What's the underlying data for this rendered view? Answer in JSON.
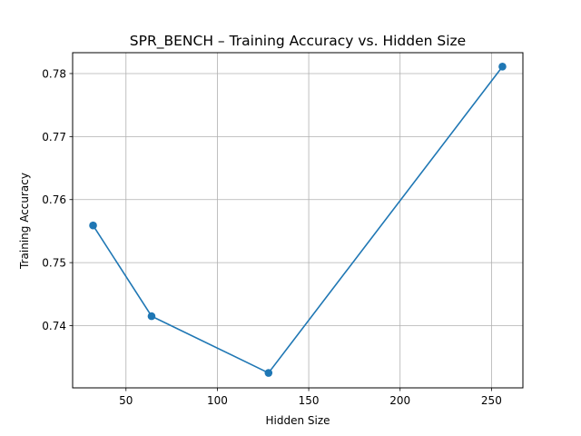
{
  "chart_data": {
    "type": "line",
    "title": "SPR_BENCH – Training Accuracy vs. Hidden Size",
    "xlabel": "Hidden Size",
    "ylabel": "Training Accuracy",
    "xlim": [
      20.8,
      267.2
    ],
    "ylim": [
      0.73013,
      0.78331
    ],
    "xticks": [
      50,
      100,
      150,
      200,
      250
    ],
    "xtick_labels": [
      "50",
      "100",
      "150",
      "200",
      "250"
    ],
    "yticks": [
      0.74,
      0.75,
      0.76,
      0.77,
      0.78
    ],
    "ytick_labels": [
      "0.74",
      "0.75",
      "0.76",
      "0.77",
      "0.78"
    ],
    "grid": true,
    "series": [
      {
        "x": [
          32,
          64,
          128,
          256
        ],
        "y": [
          0.7559,
          0.7415,
          0.7325,
          0.7811
        ],
        "color": "#1f77b4",
        "marker": "circle"
      }
    ]
  }
}
